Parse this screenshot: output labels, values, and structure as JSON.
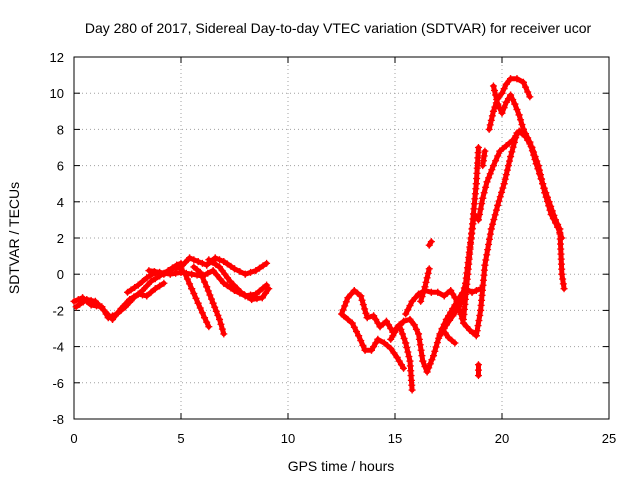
{
  "chart_data": {
    "type": "scatter",
    "title": "Day 280 of 2017, Sidereal Day-to-day VTEC variation (SDTVAR) for receiver ucor",
    "xlabel": "GPS time / hours",
    "ylabel": "SDTVAR / TECUs",
    "xlim": [
      0,
      25
    ],
    "ylim": [
      -8,
      12
    ],
    "xticks": [
      0,
      5,
      10,
      15,
      20,
      25
    ],
    "yticks": [
      -8,
      -6,
      -4,
      -2,
      0,
      2,
      4,
      6,
      8,
      10,
      12
    ],
    "grid": true,
    "marker": "plus",
    "color": "#ff0000",
    "traces": [
      [
        [
          0.0,
          -1.5
        ],
        [
          0.4,
          -1.3
        ],
        [
          0.8,
          -1.7
        ],
        [
          1.3,
          -1.8
        ],
        [
          1.6,
          -2.4
        ],
        [
          2.0,
          -2.2
        ],
        [
          2.4,
          -1.8
        ],
        [
          2.8,
          -1.3
        ],
        [
          3.2,
          -0.9
        ],
        [
          3.6,
          -0.4
        ],
        [
          4.0,
          -0.1
        ],
        [
          4.4,
          0.2
        ],
        [
          4.8,
          0.5
        ],
        [
          5.0,
          0.6
        ]
      ],
      [
        [
          0.1,
          -1.8
        ],
        [
          0.6,
          -1.4
        ],
        [
          1.0,
          -1.5
        ],
        [
          1.4,
          -2.0
        ],
        [
          1.8,
          -2.5
        ],
        [
          2.2,
          -1.9
        ],
        [
          2.6,
          -1.4
        ],
        [
          3.0,
          -1.1
        ],
        [
          3.4,
          -1.2
        ],
        [
          3.8,
          -0.8
        ],
        [
          4.2,
          -0.5
        ]
      ],
      [
        [
          2.5,
          -1.0
        ],
        [
          3.0,
          -0.6
        ],
        [
          3.4,
          -0.2
        ],
        [
          3.8,
          0.1
        ],
        [
          4.2,
          0.0
        ],
        [
          4.6,
          0.3
        ],
        [
          5.0,
          0.4
        ],
        [
          5.4,
          0.9
        ],
        [
          5.8,
          0.7
        ],
        [
          6.2,
          0.5
        ],
        [
          6.6,
          0.9
        ],
        [
          7.0,
          0.7
        ],
        [
          7.5,
          0.3
        ],
        [
          8.0,
          0.0
        ],
        [
          8.5,
          0.2
        ],
        [
          9.0,
          0.6
        ]
      ],
      [
        [
          3.5,
          0.2
        ],
        [
          4.0,
          0.1
        ],
        [
          4.5,
          0.0
        ],
        [
          5.0,
          0.1
        ],
        [
          5.5,
          0.0
        ],
        [
          6.0,
          -0.1
        ],
        [
          6.5,
          0.2
        ],
        [
          7.0,
          -0.5
        ],
        [
          7.5,
          -0.9
        ],
        [
          8.0,
          -1.2
        ],
        [
          8.5,
          -1.1
        ],
        [
          9.0,
          -0.6
        ]
      ],
      [
        [
          5.0,
          0.3
        ],
        [
          5.2,
          0.0
        ],
        [
          5.5,
          -0.8
        ],
        [
          5.8,
          -1.6
        ],
        [
          6.1,
          -2.4
        ],
        [
          6.3,
          -2.9
        ]
      ],
      [
        [
          5.6,
          0.4
        ],
        [
          5.9,
          0.1
        ],
        [
          6.2,
          -0.7
        ],
        [
          6.5,
          -1.6
        ],
        [
          6.8,
          -2.5
        ],
        [
          7.0,
          -3.3
        ]
      ],
      [
        [
          6.3,
          0.8
        ],
        [
          6.8,
          0.4
        ],
        [
          7.3,
          -0.4
        ],
        [
          7.8,
          -1.0
        ],
        [
          8.3,
          -1.4
        ],
        [
          8.8,
          -1.3
        ],
        [
          9.1,
          -0.8
        ]
      ],
      [
        [
          12.5,
          -2.2
        ],
        [
          12.8,
          -1.3
        ],
        [
          13.1,
          -0.9
        ],
        [
          13.4,
          -1.2
        ],
        [
          13.7,
          -2.4
        ],
        [
          14.0,
          -2.3
        ],
        [
          14.3,
          -2.9
        ],
        [
          14.6,
          -2.6
        ],
        [
          14.9,
          -3.2
        ],
        [
          15.2,
          -2.8
        ],
        [
          15.5,
          -3.8
        ],
        [
          15.7,
          -4.8
        ],
        [
          15.8,
          -6.4
        ]
      ],
      [
        [
          12.6,
          -2.3
        ],
        [
          13.0,
          -2.7
        ],
        [
          13.3,
          -3.4
        ],
        [
          13.6,
          -4.2
        ],
        [
          13.9,
          -4.2
        ],
        [
          14.2,
          -3.6
        ],
        [
          14.5,
          -3.8
        ],
        [
          14.8,
          -4.1
        ],
        [
          15.1,
          -4.6
        ],
        [
          15.4,
          -5.2
        ]
      ],
      [
        [
          14.8,
          -3.6
        ],
        [
          15.1,
          -3.0
        ],
        [
          15.4,
          -2.6
        ],
        [
          15.7,
          -2.5
        ],
        [
          15.9,
          -2.8
        ],
        [
          16.1,
          -3.3
        ],
        [
          16.3,
          -4.8
        ],
        [
          16.5,
          -5.4
        ],
        [
          16.8,
          -4.5
        ],
        [
          17.1,
          -3.3
        ],
        [
          17.4,
          -2.5
        ],
        [
          17.7,
          -1.9
        ],
        [
          18.0,
          -1.3
        ],
        [
          18.3,
          -0.8
        ],
        [
          18.6,
          -1.0
        ],
        [
          19.0,
          -0.8
        ]
      ],
      [
        [
          15.5,
          -2.2
        ],
        [
          15.8,
          -1.5
        ],
        [
          16.1,
          -1.1
        ],
        [
          16.4,
          -0.9
        ],
        [
          16.7,
          -1.0
        ],
        [
          17.0,
          -1.0
        ],
        [
          17.3,
          -1.2
        ],
        [
          17.6,
          -0.9
        ],
        [
          17.9,
          -1.5
        ],
        [
          18.2,
          -2.7
        ],
        [
          18.5,
          -3.1
        ],
        [
          18.8,
          -3.4
        ],
        [
          19.0,
          -2.0
        ],
        [
          19.2,
          0.5
        ],
        [
          19.5,
          2.5
        ],
        [
          19.8,
          3.8
        ],
        [
          20.1,
          5.0
        ],
        [
          20.4,
          6.5
        ],
        [
          20.7,
          7.8
        ],
        [
          21.0,
          8.0
        ]
      ],
      [
        [
          16.2,
          -1.5
        ],
        [
          16.4,
          -0.7
        ],
        [
          16.6,
          0.3
        ]
      ],
      [
        [
          16.6,
          1.6
        ],
        [
          16.7,
          1.8
        ]
      ],
      [
        [
          17.1,
          -3.4
        ],
        [
          17.4,
          -2.8
        ],
        [
          17.7,
          -2.3
        ],
        [
          18.0,
          -1.8
        ],
        [
          18.3,
          -0.5
        ],
        [
          18.5,
          1.5
        ],
        [
          18.7,
          3.3
        ],
        [
          18.9,
          3.0
        ],
        [
          19.1,
          4.2
        ],
        [
          19.3,
          5.1
        ],
        [
          19.6,
          6.0
        ],
        [
          19.9,
          6.8
        ],
        [
          20.2,
          7.1
        ],
        [
          20.5,
          7.4
        ],
        [
          20.8,
          7.9
        ],
        [
          21.1,
          7.6
        ],
        [
          21.4,
          7.0
        ],
        [
          21.7,
          6.0
        ],
        [
          22.0,
          4.5
        ],
        [
          22.3,
          3.3
        ],
        [
          22.6,
          2.6
        ],
        [
          22.8,
          2.0
        ]
      ],
      [
        [
          18.2,
          -2.5
        ],
        [
          18.4,
          0.0
        ],
        [
          18.6,
          2.5
        ],
        [
          18.8,
          5.0
        ],
        [
          18.9,
          7.0
        ]
      ],
      [
        [
          19.1,
          6.0
        ],
        [
          19.2,
          6.8
        ]
      ],
      [
        [
          19.4,
          8.0
        ],
        [
          19.6,
          9.0
        ],
        [
          19.8,
          9.7
        ],
        [
          20.0,
          10.0
        ],
        [
          20.2,
          10.5
        ],
        [
          20.4,
          10.8
        ],
        [
          20.7,
          10.8
        ],
        [
          21.0,
          10.6
        ],
        [
          21.3,
          9.8
        ]
      ],
      [
        [
          19.6,
          10.4
        ],
        [
          19.8,
          9.4
        ],
        [
          20.0,
          8.9
        ],
        [
          20.2,
          9.5
        ],
        [
          20.4,
          9.9
        ],
        [
          20.6,
          9.4
        ],
        [
          20.8,
          8.8
        ],
        [
          21.0,
          8.0
        ],
        [
          21.3,
          7.3
        ],
        [
          21.6,
          6.1
        ],
        [
          21.9,
          5.0
        ],
        [
          22.2,
          4.0
        ],
        [
          22.5,
          3.0
        ],
        [
          22.7,
          2.5
        ],
        [
          22.8,
          0.0
        ],
        [
          22.9,
          -0.8
        ]
      ],
      [
        [
          17.2,
          -3.0
        ],
        [
          17.5,
          -3.5
        ],
        [
          17.8,
          -3.8
        ]
      ],
      [
        [
          18.9,
          -5.0
        ],
        [
          18.9,
          -5.6
        ]
      ]
    ]
  }
}
